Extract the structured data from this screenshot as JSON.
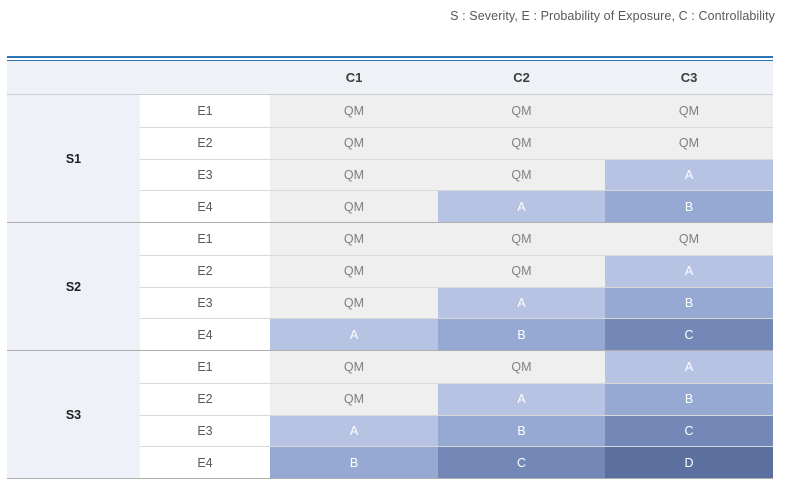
{
  "caption": "S : Severity, E : Probability of Exposure, C : Controllability",
  "table": {
    "column_headers": [
      "C1",
      "C2",
      "C3"
    ],
    "groups": [
      {
        "severity": "S1",
        "rows": [
          {
            "exposure": "E1",
            "values": [
              "QM",
              "QM",
              "QM"
            ]
          },
          {
            "exposure": "E2",
            "values": [
              "QM",
              "QM",
              "QM"
            ]
          },
          {
            "exposure": "E3",
            "values": [
              "QM",
              "QM",
              "A"
            ]
          },
          {
            "exposure": "E4",
            "values": [
              "QM",
              "A",
              "B"
            ]
          }
        ]
      },
      {
        "severity": "S2",
        "rows": [
          {
            "exposure": "E1",
            "values": [
              "QM",
              "QM",
              "QM"
            ]
          },
          {
            "exposure": "E2",
            "values": [
              "QM",
              "QM",
              "A"
            ]
          },
          {
            "exposure": "E3",
            "values": [
              "QM",
              "A",
              "B"
            ]
          },
          {
            "exposure": "E4",
            "values": [
              "A",
              "B",
              "C"
            ]
          }
        ]
      },
      {
        "severity": "S3",
        "rows": [
          {
            "exposure": "E1",
            "values": [
              "QM",
              "QM",
              "A"
            ]
          },
          {
            "exposure": "E2",
            "values": [
              "QM",
              "A",
              "B"
            ]
          },
          {
            "exposure": "E3",
            "values": [
              "A",
              "B",
              "C"
            ]
          },
          {
            "exposure": "E4",
            "values": [
              "B",
              "C",
              "D"
            ]
          }
        ]
      }
    ]
  },
  "colors": {
    "accent_line": "#2e74b5",
    "header_bg": "#eef1f6",
    "severity_col_bg": "#eef2f8",
    "row_line": "#d9d9d9",
    "group_line": "#adadad",
    "qm_bg": "#efefef",
    "qm_text": "#808080",
    "asil_a_bg": "#b6c3e3",
    "asil_b_bg": "#95a9d3",
    "asil_c_bg": "#7488b7",
    "asil_d_bg": "#5b709f",
    "level_text": "#ffffff"
  }
}
